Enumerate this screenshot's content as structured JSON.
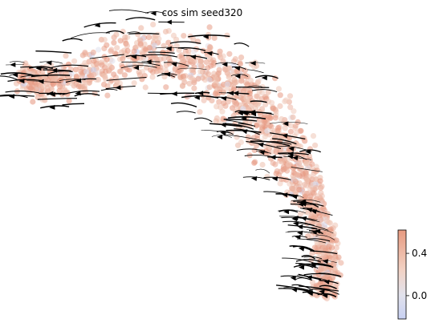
{
  "chart_data": {
    "type": "scatter",
    "title": "cos sim seed320",
    "xlabel": "",
    "ylabel": "",
    "grid": false,
    "colorbar": {
      "colormap": "coolwarm",
      "vmin": -0.22,
      "vmax": 0.62,
      "ticks": [
        0.0,
        0.4
      ],
      "tick_labels": [
        "0.0",
        "0.4"
      ],
      "placement": "right"
    },
    "colors": {
      "low": "#3b4cc0",
      "mid": "#dddddd",
      "high": "#b40426"
    },
    "overlay": "velocity streamlines with arrowheads (black)",
    "embedding_path": [
      [
        0.03,
        0.82
      ],
      [
        0.12,
        0.78
      ],
      [
        0.22,
        0.83
      ],
      [
        0.33,
        0.9
      ],
      [
        0.45,
        0.88
      ],
      [
        0.55,
        0.82
      ],
      [
        0.62,
        0.74
      ],
      [
        0.68,
        0.65
      ],
      [
        0.73,
        0.55
      ],
      [
        0.77,
        0.45
      ],
      [
        0.8,
        0.36
      ],
      [
        0.82,
        0.26
      ],
      [
        0.83,
        0.16
      ],
      [
        0.82,
        0.07
      ]
    ],
    "cells": {
      "value_mean": 0.42,
      "value_min": -0.2,
      "value_max": 0.62
    }
  }
}
